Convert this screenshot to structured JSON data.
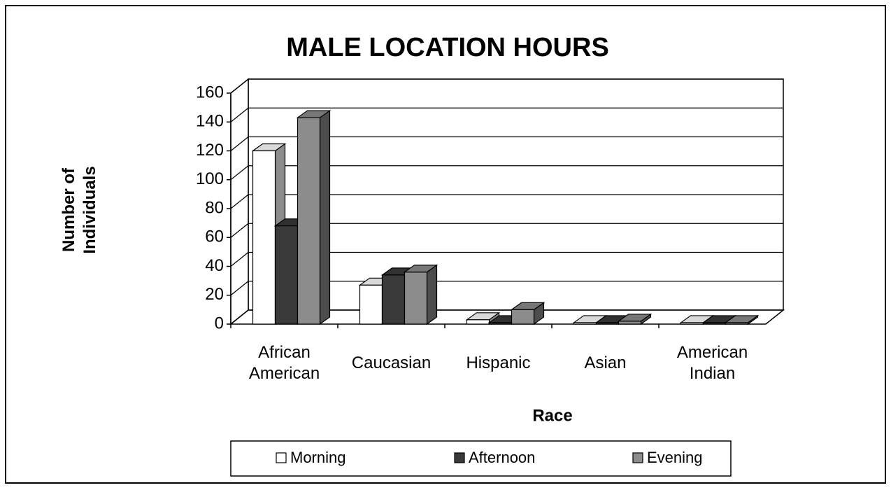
{
  "chart_data": {
    "type": "bar3d",
    "title": "MALE LOCATION HOURS",
    "y_label": "Number of Individuals",
    "x_label": "Race",
    "categories": [
      "African American",
      "Caucasian",
      "Hispanic",
      "Asian",
      "American Indian"
    ],
    "series": [
      {
        "name": "Morning",
        "color": "#ffffff",
        "values": [
          120,
          27,
          3,
          1,
          1
        ]
      },
      {
        "name": "Afternoon",
        "color": "#3a3a3a",
        "values": [
          68,
          34,
          1,
          1,
          1
        ]
      },
      {
        "name": "Evening",
        "color": "#8c8c8c",
        "values": [
          143,
          36,
          10,
          2,
          1
        ]
      }
    ],
    "ylim": [
      0,
      160
    ],
    "yticks": [
      0,
      20,
      40,
      60,
      80,
      100,
      120,
      140,
      160
    ],
    "grid": true,
    "legend": "bottom"
  }
}
